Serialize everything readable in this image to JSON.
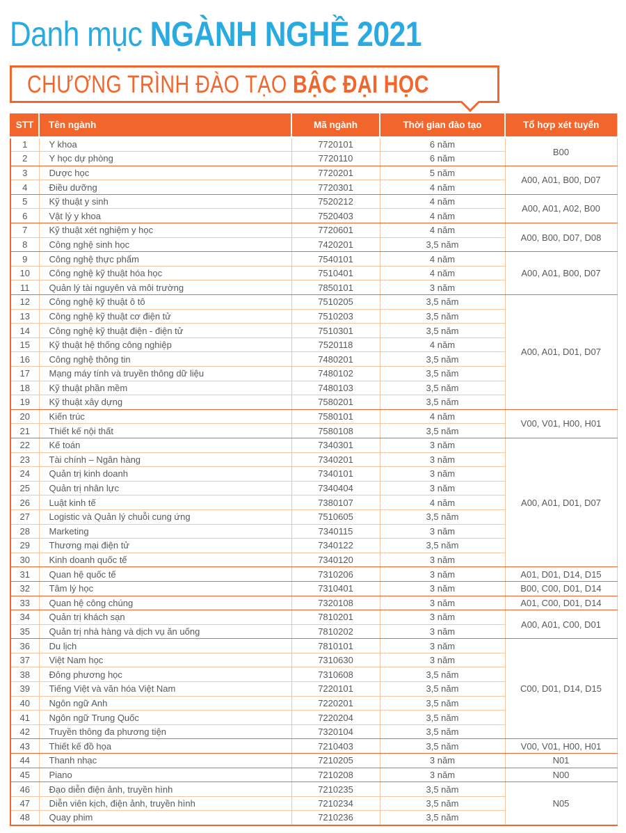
{
  "title": {
    "light": "Danh mục ",
    "bold": "NGÀNH NGHỀ 2021"
  },
  "banner": {
    "light": "CHƯƠNG TRÌNH ĐÀO TẠO ",
    "bold": "BẬC ĐẠI HỌC"
  },
  "colors": {
    "accent_blue": "#29ABE2",
    "accent_orange": "#F2662C",
    "light_grid": "#F8C5A2",
    "body_text": "#58595B"
  },
  "table": {
    "headers": [
      "STT",
      "Tên ngành",
      "Mã ngành",
      "Thời gian đào tạo",
      "Tổ hợp xét tuyển"
    ],
    "rows": [
      {
        "stt": "1",
        "name": "Y khoa",
        "code": "7720101",
        "duration": "6 năm"
      },
      {
        "stt": "2",
        "name": "Y học dự phòng",
        "code": "7720110",
        "duration": "6 năm"
      },
      {
        "stt": "3",
        "name": "Dược học",
        "code": "7720201",
        "duration": "5 năm"
      },
      {
        "stt": "4",
        "name": "Điều dưỡng",
        "code": "7720301",
        "duration": "4 năm"
      },
      {
        "stt": "5",
        "name": "Kỹ thuật y sinh",
        "code": "7520212",
        "duration": "4 năm"
      },
      {
        "stt": "6",
        "name": "Vật lý y khoa",
        "code": "7520403",
        "duration": "4 năm"
      },
      {
        "stt": "7",
        "name": "Kỹ thuật xét nghiệm y học",
        "code": "7720601",
        "duration": "4 năm"
      },
      {
        "stt": "8",
        "name": "Công nghệ sinh học",
        "code": "7420201",
        "duration": "3,5 năm"
      },
      {
        "stt": "9",
        "name": "Công nghệ thực phẩm",
        "code": "7540101",
        "duration": "4 năm"
      },
      {
        "stt": "10",
        "name": "Công nghệ kỹ thuật hóa học",
        "code": "7510401",
        "duration": "4 năm"
      },
      {
        "stt": "11",
        "name": "Quản lý tài nguyên và môi trường",
        "code": "7850101",
        "duration": "3 năm"
      },
      {
        "stt": "12",
        "name": "Công nghệ kỹ thuật ô tô",
        "code": "7510205",
        "duration": "3,5 năm"
      },
      {
        "stt": "13",
        "name": "Công nghệ kỹ thuật cơ điện tử",
        "code": "7510203",
        "duration": "3,5 năm"
      },
      {
        "stt": "14",
        "name": "Công nghệ kỹ thuật điện - điện tử",
        "code": "7510301",
        "duration": "3,5 năm"
      },
      {
        "stt": "15",
        "name": "Kỹ thuật hệ thống công nghiệp",
        "code": "7520118",
        "duration": "4 năm"
      },
      {
        "stt": "16",
        "name": "Công nghệ thông tin",
        "code": "7480201",
        "duration": "3,5 năm"
      },
      {
        "stt": "17",
        "name": "Mạng máy tính và truyền thông dữ liệu",
        "code": "7480102",
        "duration": "3,5 năm"
      },
      {
        "stt": "18",
        "name": "Kỹ thuật phần mềm",
        "code": "7480103",
        "duration": "3,5 năm"
      },
      {
        "stt": "19",
        "name": "Kỹ thuật xây dựng",
        "code": "7580201",
        "duration": "3,5 năm"
      },
      {
        "stt": "20",
        "name": "Kiến trúc",
        "code": "7580101",
        "duration": "4 năm"
      },
      {
        "stt": "21",
        "name": "Thiết kế nội thất",
        "code": "7580108",
        "duration": "3,5 năm"
      },
      {
        "stt": "22",
        "name": "Kế toán",
        "code": "7340301",
        "duration": "3 năm"
      },
      {
        "stt": "23",
        "name": "Tài chính – Ngân hàng",
        "code": "7340201",
        "duration": "3 năm"
      },
      {
        "stt": "24",
        "name": "Quản trị kinh doanh",
        "code": "7340101",
        "duration": "3 năm"
      },
      {
        "stt": "25",
        "name": "Quản trị nhân lực",
        "code": "7340404",
        "duration": "3 năm"
      },
      {
        "stt": "26",
        "name": "Luật kinh tế",
        "code": "7380107",
        "duration": "4 năm"
      },
      {
        "stt": "27",
        "name": "Logistic và Quản lý chuỗi cung ứng",
        "code": "7510605",
        "duration": "3,5 năm"
      },
      {
        "stt": "28",
        "name": "Marketing",
        "code": "7340115",
        "duration": "3 năm"
      },
      {
        "stt": "29",
        "name": "Thương mại điện tử",
        "code": "7340122",
        "duration": "3,5 năm"
      },
      {
        "stt": "30",
        "name": "Kinh doanh quốc tế",
        "code": "7340120",
        "duration": "3 năm"
      },
      {
        "stt": "31",
        "name": "Quan hệ quốc tế",
        "code": "7310206",
        "duration": "3 năm"
      },
      {
        "stt": "32",
        "name": "Tâm lý học",
        "code": "7310401",
        "duration": "3 năm"
      },
      {
        "stt": "33",
        "name": "Quan hệ công chúng",
        "code": "7320108",
        "duration": "3 năm"
      },
      {
        "stt": "34",
        "name": "Quản trị khách sạn",
        "code": "7810201",
        "duration": "3 năm"
      },
      {
        "stt": "35",
        "name": "Quản trị nhà hàng và dịch vụ ăn uống",
        "code": "7810202",
        "duration": "3 năm"
      },
      {
        "stt": "36",
        "name": "Du lịch",
        "code": "7810101",
        "duration": "3 năm"
      },
      {
        "stt": "37",
        "name": "Việt Nam học",
        "code": "7310630",
        "duration": "3 năm"
      },
      {
        "stt": "38",
        "name": "Đông phương học",
        "code": "7310608",
        "duration": "3,5 năm"
      },
      {
        "stt": "39",
        "name": "Tiếng Việt và văn hóa Việt Nam",
        "code": "7220101",
        "duration": "3,5 năm"
      },
      {
        "stt": "40",
        "name": "Ngôn ngữ Anh",
        "code": "7220201",
        "duration": "3,5 năm"
      },
      {
        "stt": "41",
        "name": "Ngôn ngữ Trung Quốc",
        "code": "7220204",
        "duration": "3,5 năm"
      },
      {
        "stt": "42",
        "name": "Truyền thông đa phương tiện",
        "code": "7320104",
        "duration": "3,5 năm"
      },
      {
        "stt": "43",
        "name": "Thiết kế đồ họa",
        "code": "7210403",
        "duration": "3,5 năm"
      },
      {
        "stt": "44",
        "name": "Thanh nhạc",
        "code": "7210205",
        "duration": "3 năm"
      },
      {
        "stt": "45",
        "name": "Piano",
        "code": "7210208",
        "duration": "3 năm"
      },
      {
        "stt": "46",
        "name": "Đạo diễn điện ảnh, truyền hình",
        "code": "7210235",
        "duration": "3,5 năm"
      },
      {
        "stt": "47",
        "name": "Diễn viên kịch, điện ảnh, truyền hình",
        "code": "7210234",
        "duration": "3,5 năm"
      },
      {
        "stt": "48",
        "name": "Quay phim",
        "code": "7210236",
        "duration": "3,5 năm"
      }
    ],
    "groups": [
      {
        "start": 1,
        "span": 2,
        "combo": "B00"
      },
      {
        "start": 3,
        "span": 2,
        "combo": "A00, A01, B00, D07"
      },
      {
        "start": 5,
        "span": 2,
        "combo": "A00, A01, A02, B00"
      },
      {
        "start": 7,
        "span": 2,
        "combo": "A00, B00, D07, D08"
      },
      {
        "start": 9,
        "span": 3,
        "combo": "A00, A01, B00, D07"
      },
      {
        "start": 12,
        "span": 8,
        "combo": "A00, A01, D01, D07"
      },
      {
        "start": 20,
        "span": 2,
        "combo": "V00, V01, H00, H01"
      },
      {
        "start": 22,
        "span": 9,
        "combo": "A00, A01, D01, D07"
      },
      {
        "start": 31,
        "span": 1,
        "combo": "A01, D01, D14, D15"
      },
      {
        "start": 32,
        "span": 1,
        "combo": "B00, C00, D01, D14"
      },
      {
        "start": 33,
        "span": 1,
        "combo": "A01, C00, D01, D14"
      },
      {
        "start": 34,
        "span": 2,
        "combo": "A00, A01, C00, D01"
      },
      {
        "start": 36,
        "span": 7,
        "combo": "C00, D01, D14, D15"
      },
      {
        "start": 43,
        "span": 1,
        "combo": "V00, V01, H00, H01"
      },
      {
        "start": 44,
        "span": 1,
        "combo": "N01"
      },
      {
        "start": 45,
        "span": 1,
        "combo": "N00"
      },
      {
        "start": 46,
        "span": 3,
        "combo": "N05"
      }
    ]
  }
}
